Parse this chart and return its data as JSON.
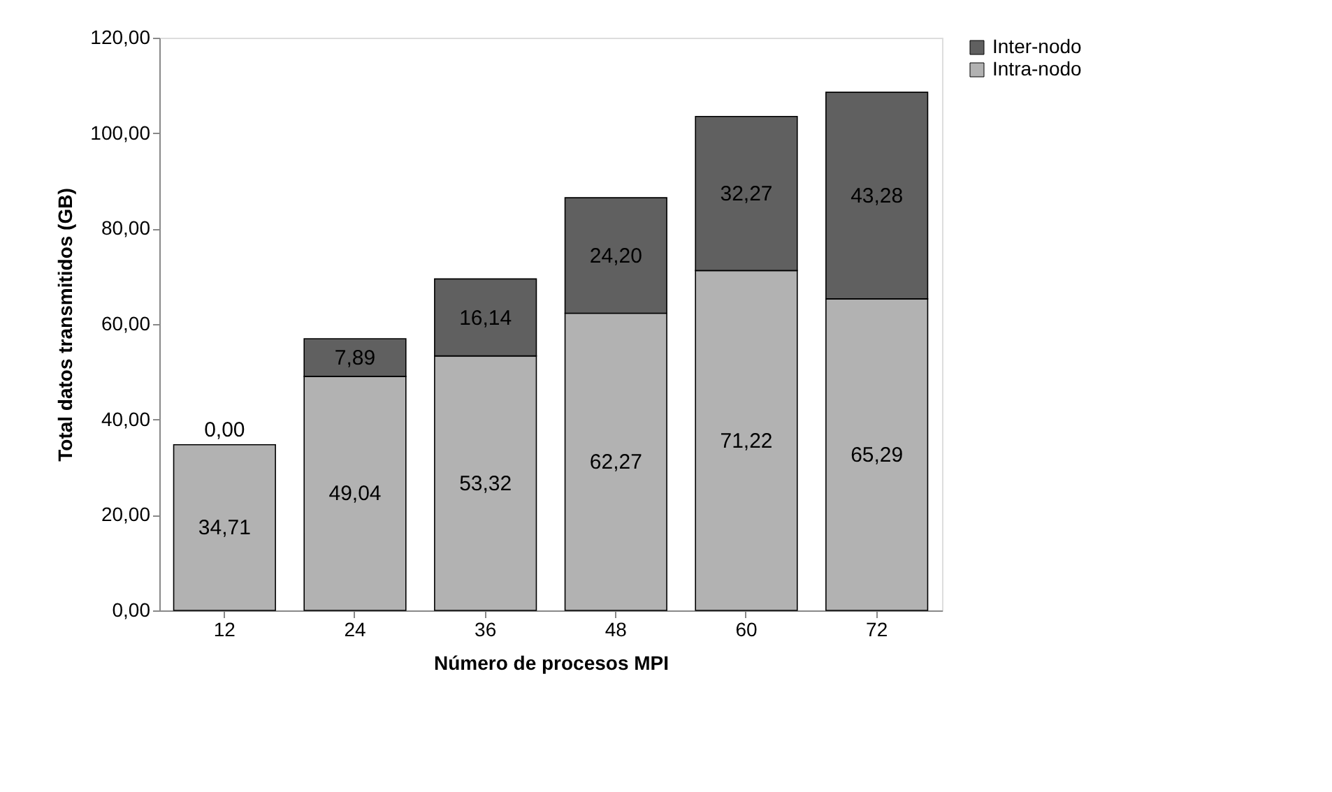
{
  "chart_data": {
    "type": "bar",
    "stacked": true,
    "xlabel": "Número de procesos MPI",
    "ylabel": "Total datos transmitidos (GB)",
    "categories": [
      "12",
      "24",
      "36",
      "48",
      "60",
      "72"
    ],
    "series": [
      {
        "name": "Intra-nodo",
        "color": "#b2b2b2",
        "values": [
          34.71,
          49.04,
          53.32,
          62.27,
          71.22,
          65.29
        ],
        "value_labels": [
          "34,71",
          "49,04",
          "53,32",
          "62,27",
          "71,22",
          "65,29"
        ]
      },
      {
        "name": "Inter-nodo",
        "color": "#606060",
        "values": [
          0.0,
          7.89,
          16.14,
          24.2,
          32.27,
          43.28
        ],
        "value_labels": [
          "0,00",
          "7,89",
          "16,14",
          "24,20",
          "32,27",
          "43,28"
        ]
      }
    ],
    "ylim": [
      0,
      120
    ],
    "yticks": [
      {
        "value": 0,
        "label": "0,00"
      },
      {
        "value": 20,
        "label": "20,00"
      },
      {
        "value": 40,
        "label": "40,00"
      },
      {
        "value": 60,
        "label": "60,00"
      },
      {
        "value": 80,
        "label": "80,00"
      },
      {
        "value": 100,
        "label": "100,00"
      },
      {
        "value": 120,
        "label": "120,00"
      }
    ],
    "grid": false,
    "legend": "right"
  }
}
